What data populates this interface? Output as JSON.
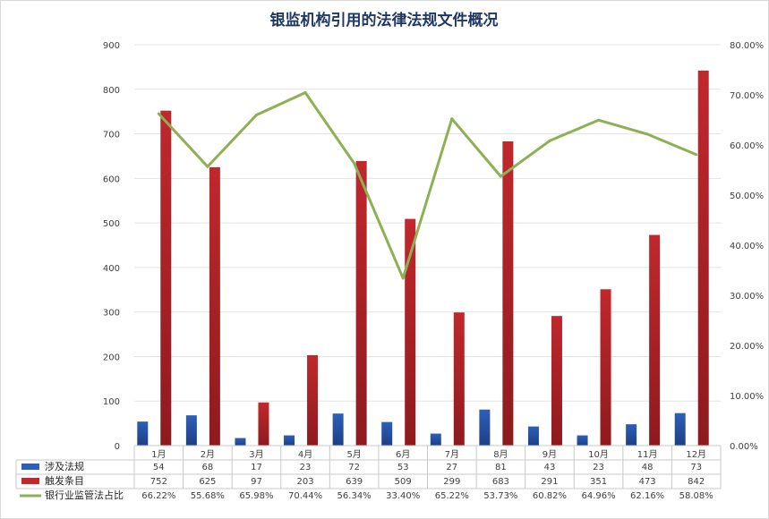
{
  "chart_data": {
    "type": "bar",
    "title": "银监机构引用的法律法规文件概况",
    "categories": [
      "1月",
      "2月",
      "3月",
      "4月",
      "5月",
      "6月",
      "7月",
      "8月",
      "9月",
      "10月",
      "11月",
      "12月"
    ],
    "series": [
      {
        "name": "涉及法规",
        "type": "bar",
        "axis": "left",
        "color": "#2e5fb8",
        "values": [
          54,
          68,
          17,
          23,
          72,
          53,
          27,
          81,
          43,
          23,
          48,
          73
        ],
        "labels": [
          "54",
          "68",
          "17",
          "23",
          "72",
          "53",
          "27",
          "81",
          "43",
          "23",
          "48",
          "73"
        ]
      },
      {
        "name": "触发条目",
        "type": "bar",
        "axis": "left",
        "color": "#c0282d",
        "values": [
          752,
          625,
          97,
          203,
          639,
          509,
          299,
          683,
          291,
          351,
          473,
          842
        ],
        "labels": [
          "752",
          "625",
          "97",
          "203",
          "639",
          "509",
          "299",
          "683",
          "291",
          "351",
          "473",
          "842"
        ]
      },
      {
        "name": "银行业监管法占比",
        "type": "line",
        "axis": "right",
        "color": "#8db054",
        "values": [
          66.22,
          55.68,
          65.98,
          70.44,
          56.34,
          33.4,
          65.22,
          53.73,
          60.82,
          64.96,
          62.16,
          58.08
        ],
        "labels": [
          "66.22%",
          "55.68%",
          "65.98%",
          "70.44%",
          "56.34%",
          "33.40%",
          "65.22%",
          "53.73%",
          "60.82%",
          "64.96%",
          "62.16%",
          "58.08%"
        ]
      }
    ],
    "y_left": {
      "min": 0,
      "max": 900,
      "step": 100,
      "ticks": [
        "0",
        "100",
        "200",
        "300",
        "400",
        "500",
        "600",
        "700",
        "800",
        "900"
      ]
    },
    "y_right": {
      "min": 0,
      "max": 80,
      "step": 10,
      "ticks": [
        "0.00%",
        "10.00%",
        "20.00%",
        "30.00%",
        "40.00%",
        "50.00%",
        "60.00%",
        "70.00%",
        "80.00%"
      ]
    },
    "grid": true,
    "legend": "data-table-below"
  }
}
